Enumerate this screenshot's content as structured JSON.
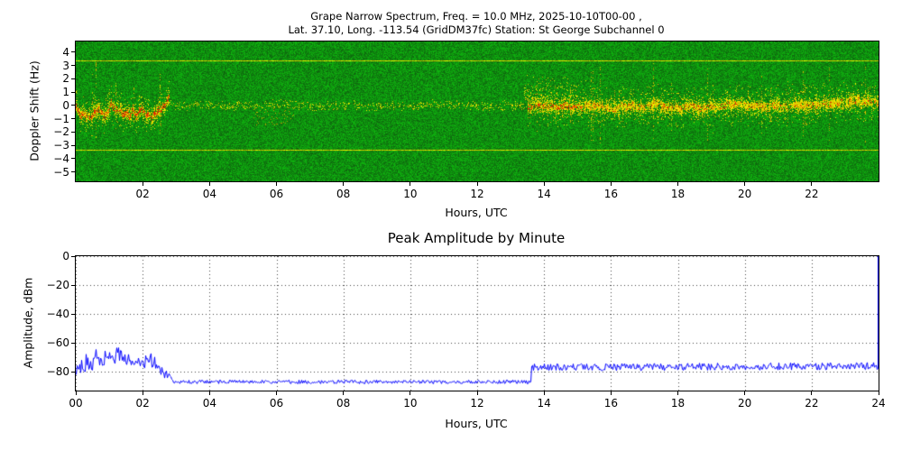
{
  "figure": {
    "background": "#ffffff"
  },
  "chart_data": [
    {
      "type": "heatmap",
      "name": "grape-narrow-spectrum",
      "title_line1": "Grape Narrow Spectrum, Freq. = 10.0 MHz, 2025-10-10T00-00 ,",
      "title_line2": "Lat.  37.10, Long. -113.54 (GridDM37fc) Station: St George Subchannel 0",
      "xlabel": "Hours, UTC",
      "ylabel": "Doppler Shift (Hz)",
      "xlim": [
        0,
        24
      ],
      "ylim": [
        -5.7,
        4.8
      ],
      "xticks": [
        2,
        4,
        6,
        8,
        10,
        12,
        14,
        16,
        18,
        20,
        22
      ],
      "xtick_labels": [
        "02",
        "04",
        "06",
        "08",
        "10",
        "12",
        "14",
        "16",
        "18",
        "20",
        "22"
      ],
      "yticks": [
        4,
        3,
        2,
        1,
        0,
        -1,
        -2,
        -3,
        -4,
        -5
      ],
      "ytick_labels": [
        "4",
        "3",
        "2",
        "1",
        "0",
        "−1",
        "−2",
        "−3",
        "−4",
        "−5"
      ],
      "colors": {
        "background_green": "#1e8a1e",
        "signal_yellow": "#ffff00",
        "core_red": "#dd2200",
        "interference_yellow": "#cccc00"
      },
      "interference_lines_hz": [
        3.4,
        -3.4
      ],
      "signal_center_hz": 0,
      "segments": [
        {
          "x_start": 0.0,
          "x_end": 2.8,
          "intensity": "strong",
          "core": true,
          "wander_hz": 0.8,
          "spread_hz": 1.3,
          "description": "active wandering trace near 0 Hz with red core and fuzzy sidebands"
        },
        {
          "x_start": 2.8,
          "x_end": 13.5,
          "intensity": "faint",
          "core": false,
          "wander_hz": 0.15,
          "spread_hz": 0.35,
          "description": "weak intermittent trace near 0 Hz, faint diffuse dip near 5.5-6.5 UTC"
        },
        {
          "x_start": 13.5,
          "x_end": 24.0,
          "intensity": "strong",
          "core": true,
          "wander_hz": 0.25,
          "spread_hz": 1.5,
          "description": "strong trace with red core, upward wisps to +2 Hz near 13.5-15 UTC"
        }
      ]
    },
    {
      "type": "line",
      "name": "peak-amplitude-by-minute",
      "title": "Peak Amplitude by Minute",
      "xlabel": "Hours, UTC",
      "ylabel": "Amplitude, dBm",
      "xlim": [
        0,
        24
      ],
      "ylim": [
        -93,
        0
      ],
      "xticks": [
        0,
        2,
        4,
        6,
        8,
        10,
        12,
        14,
        16,
        18,
        20,
        22,
        24
      ],
      "xtick_labels": [
        "00",
        "02",
        "04",
        "06",
        "08",
        "10",
        "12",
        "14",
        "16",
        "18",
        "20",
        "22",
        "24"
      ],
      "yticks": [
        0,
        -20,
        -40,
        -60,
        -80
      ],
      "ytick_labels": [
        "0",
        "−20",
        "−40",
        "−60",
        "−80"
      ],
      "line_color": "#0000ff",
      "grid": "dotted",
      "end_spike_dbm": 0,
      "segments": [
        {
          "x_start": 0.0,
          "x_end": 0.6,
          "start": -77,
          "end": -74,
          "noise": 5
        },
        {
          "x_start": 0.6,
          "x_end": 1.4,
          "start": -71,
          "end": -68,
          "noise": 6
        },
        {
          "x_start": 1.4,
          "x_end": 2.4,
          "start": -71,
          "end": -74,
          "noise": 5
        },
        {
          "x_start": 2.4,
          "x_end": 2.9,
          "start": -77,
          "end": -86,
          "noise": 3
        },
        {
          "x_start": 2.9,
          "x_end": 13.6,
          "start": -87,
          "end": -87,
          "noise": 1.3
        },
        {
          "x_start": 13.6,
          "x_end": 24.0,
          "start": -77,
          "end": -76,
          "noise": 2.5
        }
      ]
    }
  ]
}
